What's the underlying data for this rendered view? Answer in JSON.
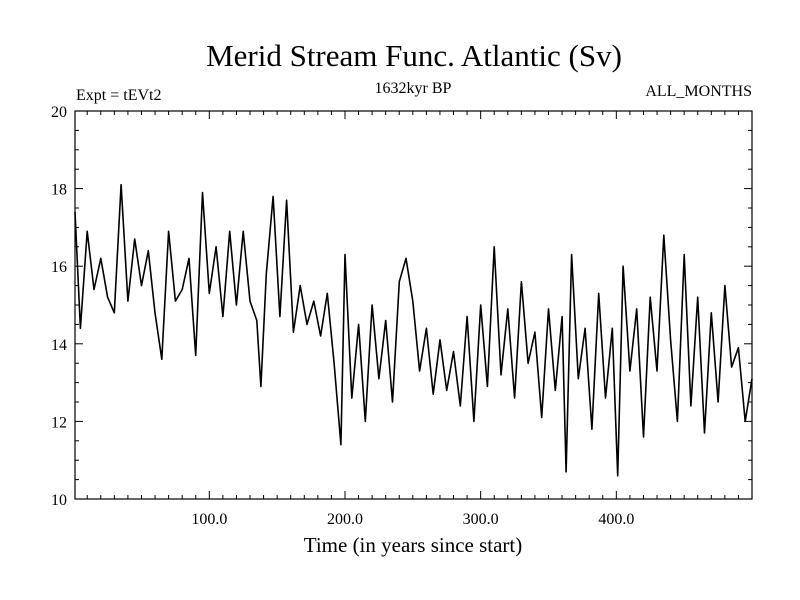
{
  "chart_data": {
    "type": "line",
    "title": "Merid Stream Func. Atlantic (Sv)",
    "subtitle_left": "Expt = tEVt2",
    "subtitle_center": "1632kyr BP",
    "subtitle_right": "ALL_MONTHS",
    "xlabel": "Time (in years since start)",
    "ylabel": "",
    "xlim": [
      1,
      500
    ],
    "ylim": [
      10,
      20
    ],
    "x_tick_labels": [
      "100.0",
      "200.0",
      "300.0",
      "400.0"
    ],
    "x_ticks": [
      100,
      200,
      300,
      400
    ],
    "y_tick_labels": [
      "10",
      "12",
      "14",
      "16",
      "18",
      "20"
    ],
    "y_ticks": [
      10,
      12,
      14,
      16,
      18,
      20
    ],
    "series": [
      {
        "name": "Merid Stream Func. Atlantic",
        "x": [
          1,
          5,
          10,
          15,
          20,
          25,
          30,
          35,
          40,
          45,
          50,
          55,
          60,
          65,
          70,
          75,
          80,
          85,
          90,
          95,
          100,
          105,
          110,
          115,
          120,
          125,
          130,
          135,
          138,
          142,
          147,
          152,
          157,
          162,
          167,
          172,
          177,
          182,
          187,
          192,
          197,
          200,
          205,
          210,
          215,
          220,
          225,
          230,
          235,
          240,
          245,
          250,
          255,
          260,
          265,
          270,
          275,
          280,
          285,
          290,
          295,
          300,
          305,
          310,
          315,
          320,
          325,
          330,
          335,
          340,
          345,
          350,
          355,
          360,
          363,
          367,
          372,
          377,
          382,
          387,
          392,
          397,
          401,
          405,
          410,
          415,
          420,
          425,
          430,
          435,
          440,
          445,
          450,
          455,
          460,
          465,
          470,
          475,
          480,
          485,
          490,
          495,
          500
        ],
        "values": [
          17.4,
          14.4,
          16.9,
          15.4,
          16.2,
          15.2,
          14.8,
          18.1,
          15.1,
          16.7,
          15.5,
          16.4,
          14.8,
          13.6,
          16.9,
          15.1,
          15.4,
          16.2,
          13.7,
          17.9,
          15.3,
          16.5,
          14.7,
          16.9,
          15.0,
          16.9,
          15.1,
          14.6,
          12.9,
          15.8,
          17.8,
          14.7,
          17.7,
          14.3,
          15.5,
          14.5,
          15.1,
          14.2,
          15.3,
          13.5,
          11.4,
          16.3,
          12.6,
          14.5,
          12.0,
          15.0,
          13.1,
          14.6,
          12.5,
          15.6,
          16.2,
          15.1,
          13.3,
          14.4,
          12.7,
          14.1,
          12.8,
          13.8,
          12.4,
          14.7,
          12.0,
          15.0,
          12.9,
          16.5,
          13.2,
          14.9,
          12.6,
          15.6,
          13.5,
          14.3,
          12.1,
          14.9,
          12.8,
          14.7,
          10.7,
          16.3,
          13.1,
          14.4,
          11.8,
          15.3,
          12.6,
          14.4,
          10.6,
          16.0,
          13.3,
          14.9,
          11.6,
          15.2,
          13.3,
          16.8,
          14.1,
          12.0,
          16.3,
          12.4,
          15.2,
          11.7,
          14.8,
          12.5,
          15.5,
          13.4,
          13.9,
          12.0,
          13.1
        ]
      }
    ]
  }
}
